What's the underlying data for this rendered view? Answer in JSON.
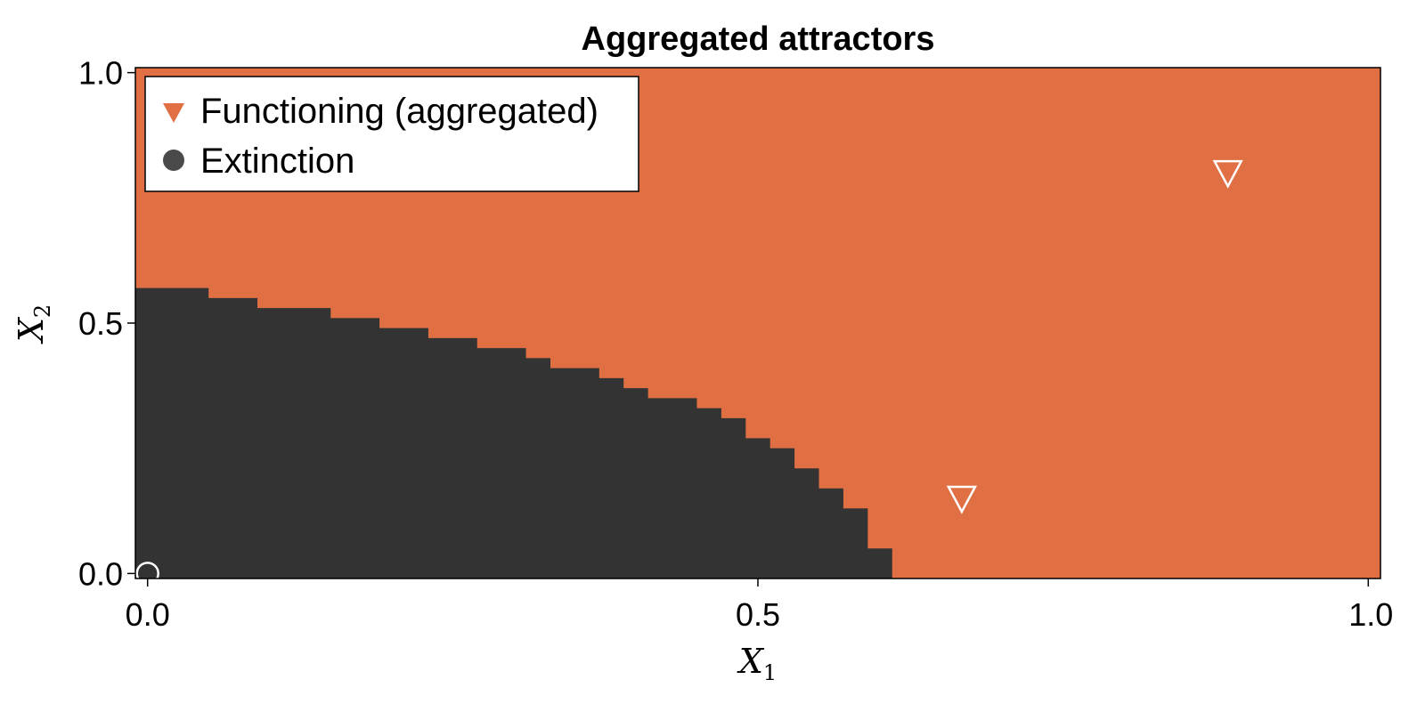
{
  "chart_data": {
    "type": "heatmap",
    "title": "Aggregated attractors",
    "xlabel": "X",
    "xlabel_sub": "1",
    "ylabel": "X",
    "ylabel_sub": "2",
    "xlim": [
      -0.01,
      1.01
    ],
    "ylim": [
      -0.01,
      1.01
    ],
    "xticks": [
      0.0,
      0.5,
      1.0
    ],
    "xtick_labels": [
      "0.0",
      "0.5",
      "1.0"
    ],
    "yticks": [
      0.0,
      0.5,
      1.0
    ],
    "ytick_labels": [
      "0.0",
      "0.5",
      "1.0"
    ],
    "grid": false,
    "legend_position": "top-left",
    "colors": {
      "functioning": "#e07044",
      "extinction": "#333333",
      "extinction_legend": "#4a4a4a"
    },
    "regions": [
      {
        "name": "Functioning (aggregated)",
        "color_key": "functioning",
        "description_upper_of_boundary": true
      },
      {
        "name": "Extinction",
        "color_key": "extinction",
        "boundary_steps": [
          {
            "x0": -0.01,
            "x1": 0.05,
            "y": 0.57
          },
          {
            "x0": 0.05,
            "x1": 0.09,
            "y": 0.55
          },
          {
            "x0": 0.09,
            "x1": 0.15,
            "y": 0.53
          },
          {
            "x0": 0.15,
            "x1": 0.19,
            "y": 0.51
          },
          {
            "x0": 0.19,
            "x1": 0.23,
            "y": 0.49
          },
          {
            "x0": 0.23,
            "x1": 0.27,
            "y": 0.47
          },
          {
            "x0": 0.27,
            "x1": 0.31,
            "y": 0.45
          },
          {
            "x0": 0.31,
            "x1": 0.33,
            "y": 0.43
          },
          {
            "x0": 0.33,
            "x1": 0.37,
            "y": 0.41
          },
          {
            "x0": 0.37,
            "x1": 0.39,
            "y": 0.39
          },
          {
            "x0": 0.39,
            "x1": 0.41,
            "y": 0.37
          },
          {
            "x0": 0.41,
            "x1": 0.45,
            "y": 0.35
          },
          {
            "x0": 0.45,
            "x1": 0.47,
            "y": 0.33
          },
          {
            "x0": 0.47,
            "x1": 0.49,
            "y": 0.31
          },
          {
            "x0": 0.49,
            "x1": 0.51,
            "y": 0.27
          },
          {
            "x0": 0.51,
            "x1": 0.53,
            "y": 0.25
          },
          {
            "x0": 0.53,
            "x1": 0.55,
            "y": 0.21
          },
          {
            "x0": 0.55,
            "x1": 0.57,
            "y": 0.17
          },
          {
            "x0": 0.57,
            "x1": 0.59,
            "y": 0.13
          },
          {
            "x0": 0.59,
            "x1": 0.61,
            "y": 0.05
          }
        ]
      }
    ],
    "attractors": [
      {
        "series": "Functioning (aggregated)",
        "marker": "triangle-down",
        "x": 0.667,
        "y": 0.15
      },
      {
        "series": "Functioning (aggregated)",
        "marker": "triangle-down",
        "x": 0.885,
        "y": 0.8
      },
      {
        "series": "Extinction",
        "marker": "circle",
        "x": 0.0,
        "y": 0.0
      }
    ],
    "legend": [
      {
        "label": "Functioning (aggregated)",
        "marker": "triangle-down",
        "color_key": "functioning"
      },
      {
        "label": "Extinction",
        "marker": "circle",
        "color_key": "extinction_legend"
      }
    ]
  }
}
